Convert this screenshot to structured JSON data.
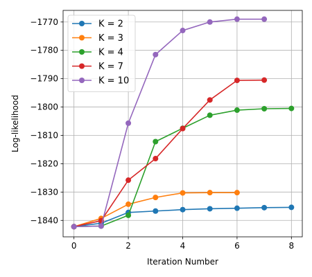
{
  "chart_data": {
    "type": "line",
    "title": "",
    "xlabel": "Iteration Number",
    "ylabel": "Log-likelihood",
    "xlim": [
      -0.4,
      8.4
    ],
    "ylim": [
      -1845.8,
      -1765.9
    ],
    "xticks": [
      0,
      2,
      4,
      6,
      8
    ],
    "yticks": [
      -1840,
      -1830,
      -1820,
      -1810,
      -1800,
      -1790,
      -1780,
      -1770
    ],
    "ytick_labels": [
      "−1840",
      "−1830",
      "−1820",
      "−1810",
      "−1800",
      "−1790",
      "−1780",
      "−1770"
    ],
    "grid": true,
    "legend_position": "upper-left",
    "series": [
      {
        "name": "K = 2",
        "color": "#1f77b4",
        "x": [
          0,
          1,
          2,
          3,
          4,
          5,
          6,
          7,
          8
        ],
        "y": [
          -1842.2,
          -1841.0,
          -1837.2,
          -1836.7,
          -1836.2,
          -1835.9,
          -1835.7,
          -1835.5,
          -1835.4
        ]
      },
      {
        "name": "K = 3",
        "color": "#ff7f0e",
        "x": [
          0,
          1,
          2,
          3,
          4,
          5,
          6
        ],
        "y": [
          -1842.2,
          -1839.3,
          -1834.3,
          -1831.9,
          -1830.3,
          -1830.2,
          -1830.2
        ]
      },
      {
        "name": "K = 4",
        "color": "#2ca02c",
        "x": [
          0,
          1,
          2,
          3,
          4,
          5,
          6,
          7,
          8
        ],
        "y": [
          -1842.2,
          -1842.0,
          -1838.2,
          -1812.2,
          -1807.5,
          -1802.9,
          -1801.1,
          -1800.6,
          -1800.5
        ]
      },
      {
        "name": "K = 7",
        "color": "#d62728",
        "x": [
          0,
          1,
          2,
          3,
          4,
          5,
          6,
          7
        ],
        "y": [
          -1842.2,
          -1840.1,
          -1825.8,
          -1818.2,
          -1807.6,
          -1797.5,
          -1790.6,
          -1790.5
        ]
      },
      {
        "name": "K = 10",
        "color": "#9467bd",
        "x": [
          0,
          1,
          2,
          3,
          4,
          5,
          6,
          7
        ],
        "y": [
          -1842.2,
          -1842.0,
          -1805.7,
          -1781.5,
          -1773.0,
          -1770.0,
          -1769.0,
          -1769.0
        ]
      }
    ]
  }
}
